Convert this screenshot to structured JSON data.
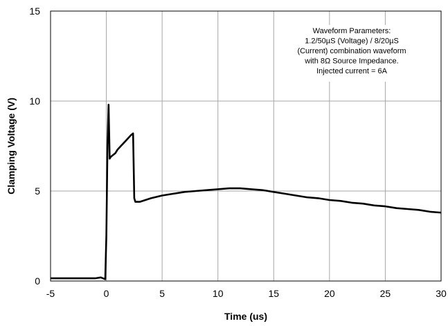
{
  "chart_data": {
    "type": "line",
    "title": "",
    "xlabel": "Time (us)",
    "ylabel": "Clamping Voltage (V)",
    "xlim": [
      -5,
      30
    ],
    "ylim": [
      0,
      15
    ],
    "x_ticks": [
      "-5",
      "0",
      "5",
      "10",
      "15",
      "20",
      "25",
      "30"
    ],
    "y_ticks": [
      "0",
      "5",
      "10",
      "15"
    ],
    "grid": true,
    "legend": "none",
    "line_color": "#000000",
    "grid_color": "#a6a6a6",
    "annotation": [
      "Waveform Parameters:",
      "1.2/50µS (Voltage) / 8/20µS",
      "(Current) combination waveform",
      "with 8Ω Source Impedance.",
      "Injected current = 6A"
    ],
    "series": [
      {
        "x": [
          -5,
          -3,
          -1,
          -0.5,
          -0.3,
          -0.1,
          0.0,
          0.1,
          0.2,
          0.3,
          0.4,
          0.6,
          0.8,
          1.0,
          1.3,
          1.6,
          1.9,
          2.2,
          2.4,
          2.5,
          2.6,
          3,
          4,
          5,
          6,
          7,
          8,
          9,
          10,
          11,
          12,
          13,
          14,
          15,
          16,
          17,
          18,
          19,
          20,
          21,
          22,
          23,
          24,
          25,
          26,
          27,
          28,
          29,
          30
        ],
        "y": [
          0.15,
          0.15,
          0.15,
          0.2,
          0.15,
          0.1,
          2.5,
          7.5,
          9.8,
          6.8,
          6.9,
          7.0,
          7.1,
          7.3,
          7.5,
          7.7,
          7.9,
          8.1,
          8.2,
          4.6,
          4.4,
          4.4,
          4.6,
          4.75,
          4.85,
          4.95,
          5.0,
          5.05,
          5.1,
          5.15,
          5.15,
          5.1,
          5.05,
          4.95,
          4.85,
          4.75,
          4.65,
          4.6,
          4.5,
          4.45,
          4.35,
          4.3,
          4.2,
          4.15,
          4.05,
          4.0,
          3.95,
          3.85,
          3.8
        ]
      }
    ]
  }
}
